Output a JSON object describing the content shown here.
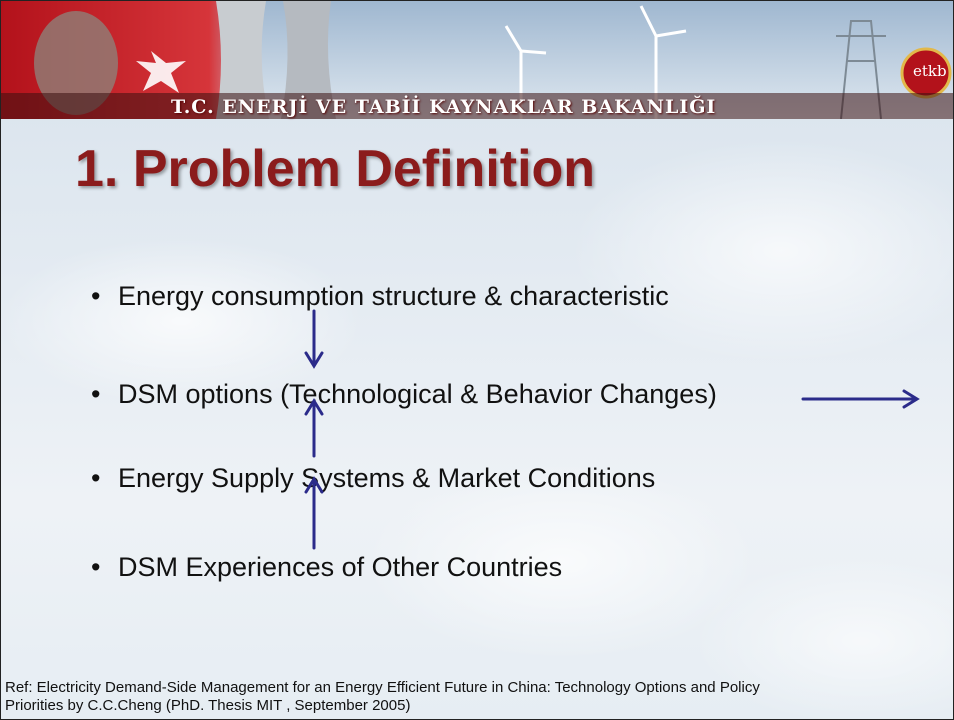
{
  "header": {
    "ministry": "T.C. ENERJİ VE TABİİ KAYNAKLAR BAKANLIĞI",
    "logo": "etkb"
  },
  "title": "1. Problem Definition",
  "bullets": [
    "Energy consumption structure & characteristic",
    "DSM options (Technological & Behavior Changes)",
    "Energy Supply Systems & Market Conditions",
    "DSM Experiences of Other Countries"
  ],
  "reference": "Ref: Electricity Demand-Side Management for an Energy Efficient Future in China: Technology Options and Policy Priorities by C.C.Cheng (PhD. Thesis MIT , September 2005)"
}
